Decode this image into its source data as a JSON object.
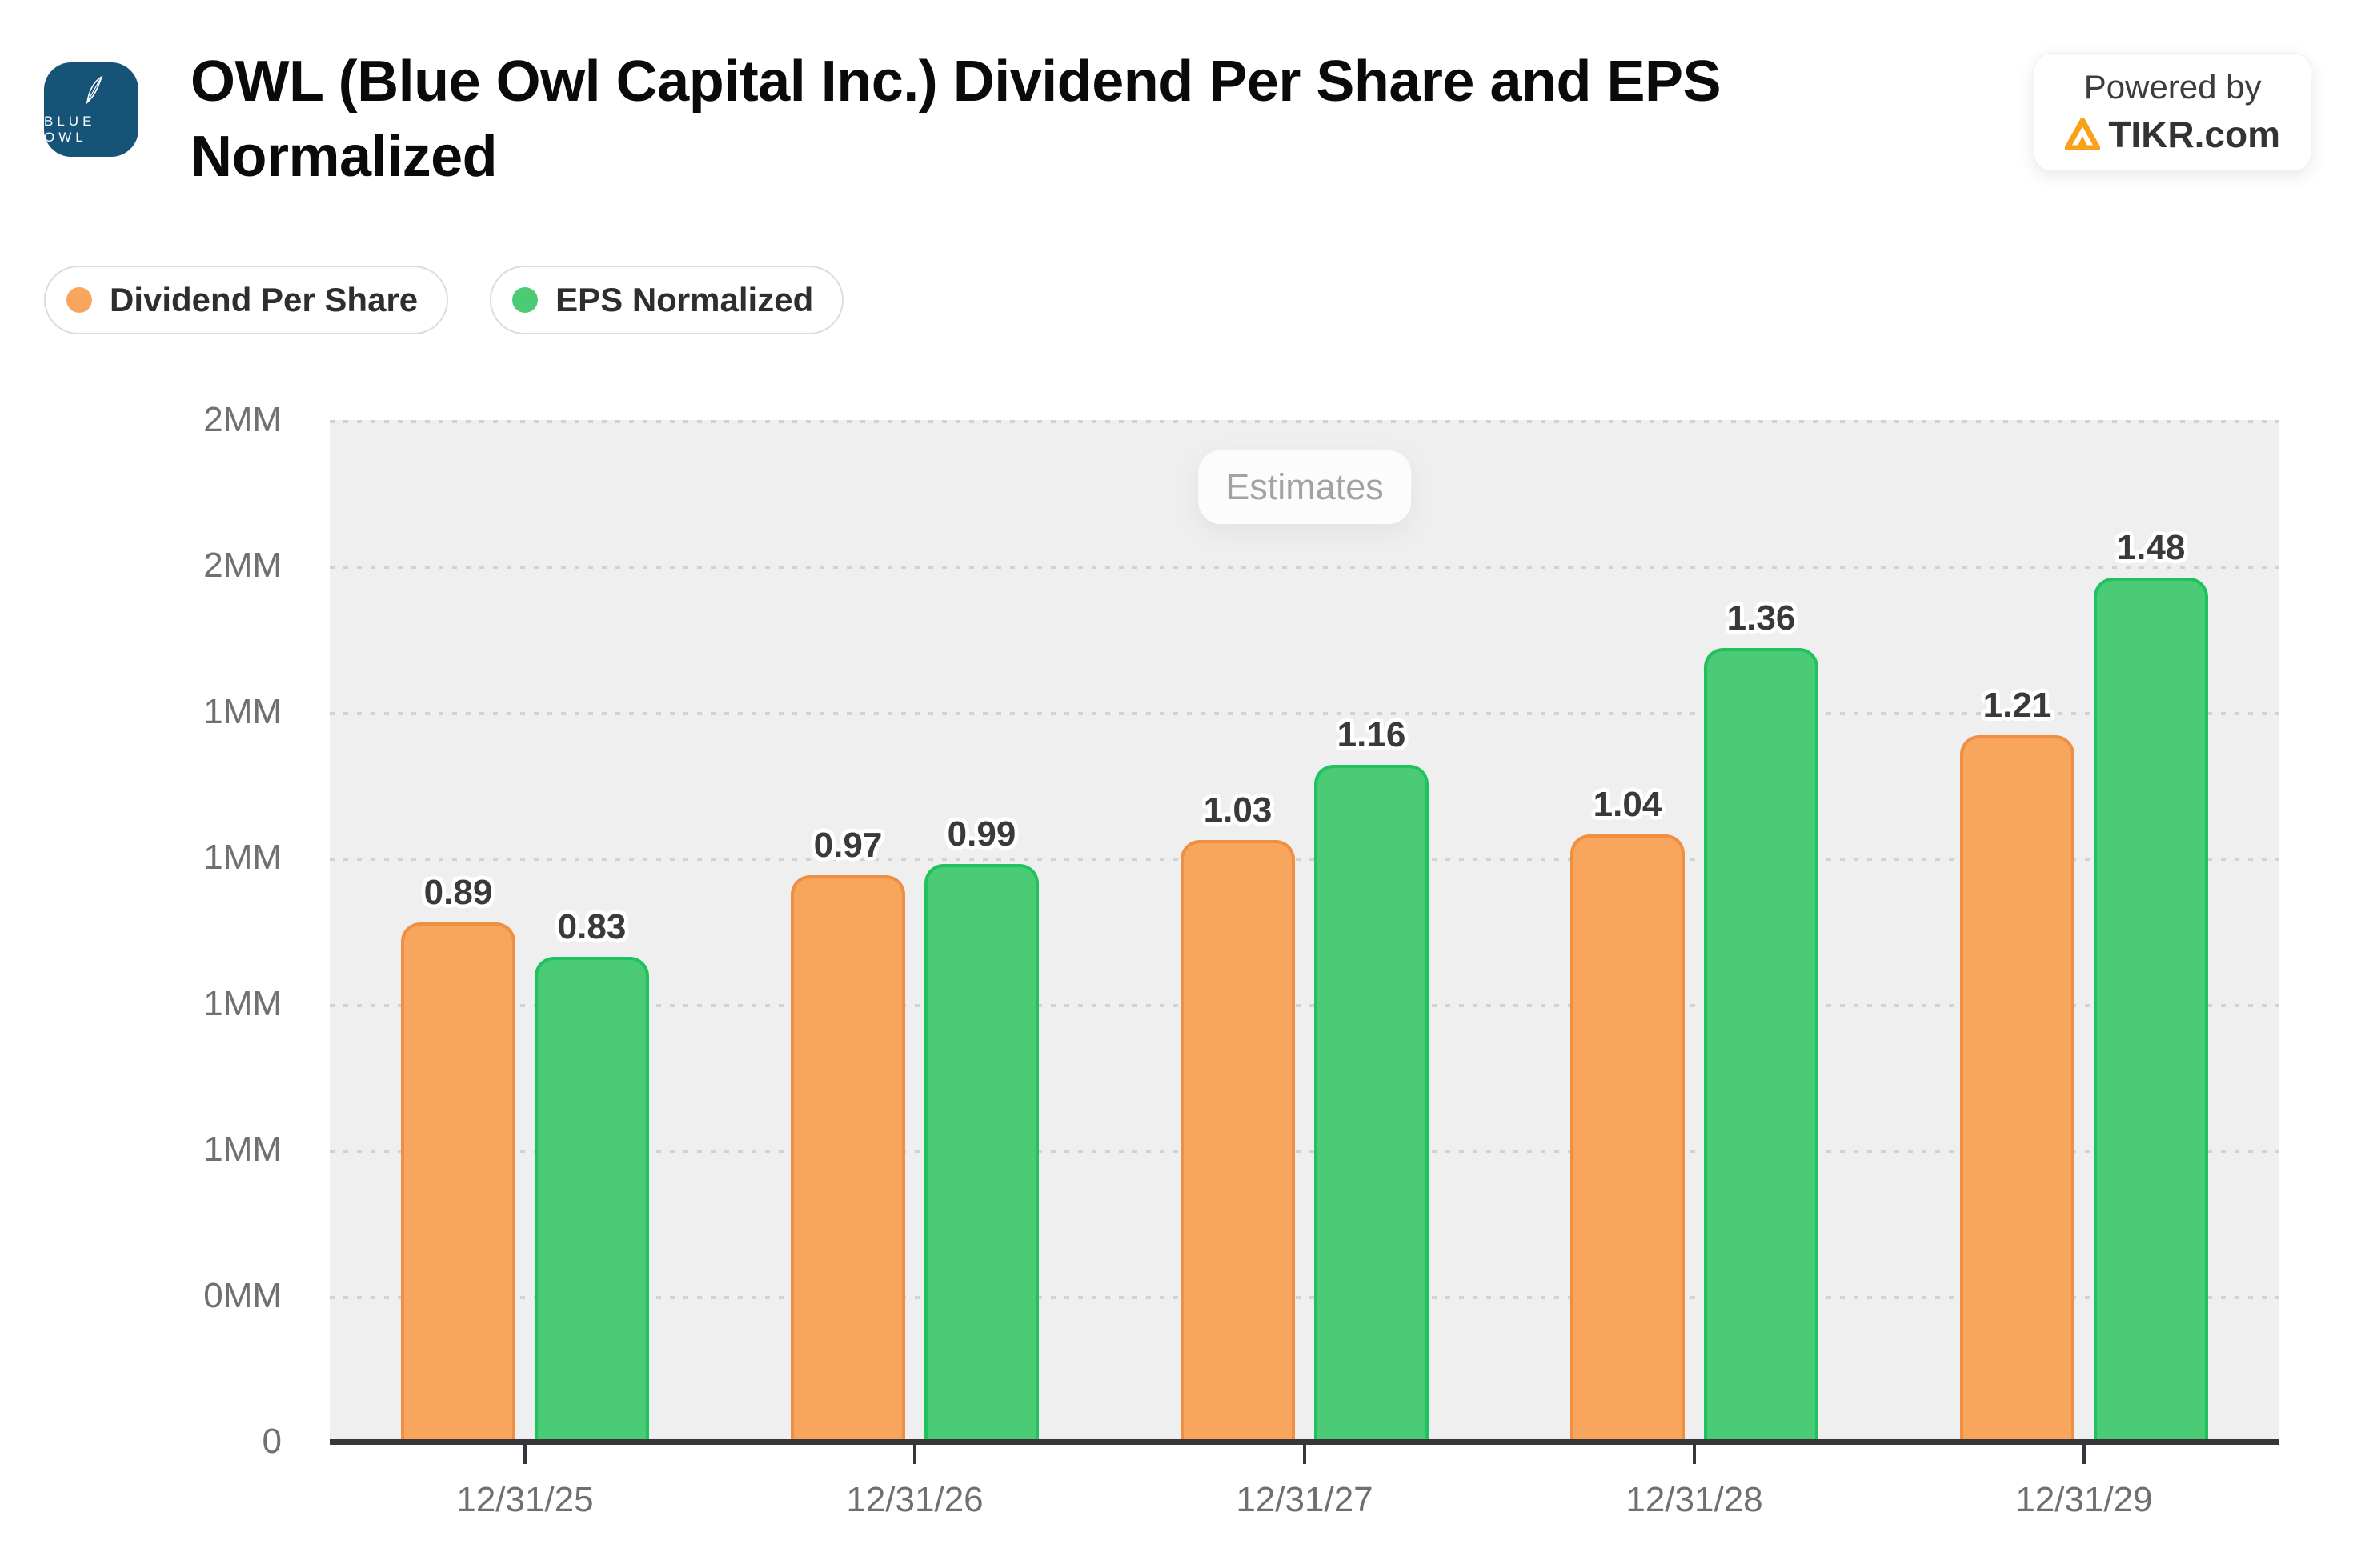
{
  "header": {
    "title_line1": "OWL (Blue Owl Capital Inc.) Dividend Per Share and EPS",
    "title_line2": "Normalized",
    "logo_text": "BLUE OWL",
    "powered_by_label": "Powered by",
    "powered_by_brand": "TIKR.com"
  },
  "legend": [
    {
      "label": "Dividend Per Share",
      "color": "#F8A55E"
    },
    {
      "label": "EPS Normalized",
      "color": "#4CCB77"
    }
  ],
  "estimates_label": "Estimates",
  "chart_data": {
    "type": "bar",
    "title": "OWL (Blue Owl Capital Inc.) Dividend Per Share and EPS Normalized",
    "categories": [
      "12/31/25",
      "12/31/26",
      "12/31/27",
      "12/31/28",
      "12/31/29"
    ],
    "series": [
      {
        "name": "Dividend Per Share",
        "color": "#F8A55E",
        "border_color": "#EE8F43",
        "values": [
          0.89,
          0.97,
          1.03,
          1.04,
          1.21
        ]
      },
      {
        "name": "EPS Normalized",
        "color": "#4CCB77",
        "border_color": "#1FC25F",
        "values": [
          0.83,
          0.99,
          1.16,
          1.36,
          1.48
        ]
      }
    ],
    "y_axis": {
      "min": 0,
      "max": 1.75,
      "tick_interval": 0.25,
      "tick_labels_top_to_bottom": [
        "2MM",
        "2MM",
        "1MM",
        "1MM",
        "1MM",
        "1MM",
        "0MM",
        "0"
      ]
    },
    "annotation": "Estimates",
    "legend_position": "top-left",
    "grid": "dotted-horizontal",
    "plot_background": "#efefef"
  },
  "colors": {
    "page_bg": "#ffffff",
    "plot_bg": "#efefef",
    "gridline": "#d2d2d2",
    "axis_line": "#37373b",
    "tick_text": "#6f6f6f",
    "value_label_text": "#3a3a3a",
    "estimates_text": "#a2a2a2",
    "legend_border": "#dcdcdc",
    "logo_bg": "#155377",
    "tikr_orange": "#F9A11B",
    "orange_fill": "#F8A55E",
    "orange_border": "#EE8F43",
    "green_fill": "#4CCB77",
    "green_border": "#1FC25F"
  }
}
